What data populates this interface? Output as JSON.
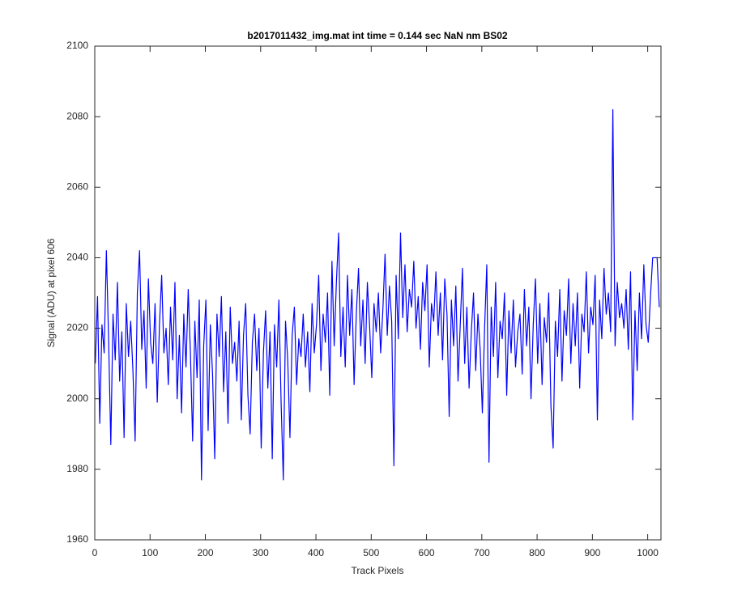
{
  "chart_data": {
    "type": "line",
    "title": "b2017011432_img.mat int time = 0.144 sec  NaN nm BS02",
    "xlabel": "Track Pixels",
    "ylabel": "Signal (ADU) at pixel 606",
    "xlim": [
      0,
      1024
    ],
    "ylim": [
      1960,
      2100
    ],
    "xticks": [
      0,
      100,
      200,
      300,
      400,
      500,
      600,
      700,
      800,
      900,
      1000
    ],
    "yticks": [
      1960,
      1980,
      2000,
      2020,
      2040,
      2060,
      2080,
      2100
    ],
    "x": [
      1,
      5,
      9,
      13,
      17,
      21,
      25,
      29,
      33,
      37,
      41,
      45,
      49,
      53,
      57,
      61,
      65,
      69,
      73,
      77,
      81,
      85,
      89,
      93,
      97,
      101,
      105,
      109,
      113,
      117,
      121,
      125,
      129,
      133,
      137,
      141,
      145,
      149,
      153,
      157,
      161,
      165,
      169,
      173,
      177,
      181,
      185,
      189,
      193,
      197,
      201,
      205,
      209,
      213,
      217,
      221,
      225,
      229,
      233,
      237,
      241,
      245,
      249,
      253,
      257,
      261,
      265,
      269,
      273,
      277,
      281,
      285,
      289,
      293,
      297,
      301,
      305,
      309,
      313,
      317,
      321,
      325,
      329,
      333,
      337,
      341,
      345,
      349,
      353,
      357,
      361,
      365,
      369,
      373,
      377,
      381,
      385,
      389,
      393,
      397,
      401,
      405,
      409,
      413,
      417,
      421,
      425,
      429,
      433,
      437,
      441,
      445,
      449,
      453,
      457,
      461,
      465,
      469,
      473,
      477,
      481,
      485,
      489,
      493,
      497,
      501,
      505,
      509,
      513,
      517,
      521,
      525,
      529,
      533,
      537,
      541,
      545,
      549,
      553,
      557,
      561,
      565,
      569,
      573,
      577,
      581,
      585,
      589,
      593,
      597,
      601,
      605,
      609,
      613,
      617,
      621,
      625,
      629,
      633,
      637,
      641,
      645,
      649,
      653,
      657,
      661,
      665,
      669,
      673,
      677,
      681,
      685,
      689,
      693,
      697,
      701,
      705,
      709,
      713,
      717,
      721,
      725,
      729,
      733,
      737,
      741,
      745,
      749,
      753,
      757,
      761,
      765,
      769,
      773,
      777,
      781,
      785,
      789,
      793,
      797,
      801,
      805,
      809,
      813,
      817,
      821,
      825,
      829,
      833,
      837,
      841,
      845,
      849,
      853,
      857,
      861,
      865,
      869,
      873,
      877,
      881,
      885,
      889,
      893,
      897,
      901,
      905,
      909,
      913,
      917,
      921,
      925,
      929,
      933,
      937,
      941,
      945,
      949,
      953,
      957,
      961,
      965,
      969,
      973,
      977,
      981,
      985,
      989,
      993,
      997,
      1001,
      1005,
      1009,
      1013,
      1017,
      1021
    ],
    "series": [
      {
        "color": "#0000ff",
        "values": [
          2010,
          2029,
          1993,
          2021,
          2013,
          2042,
          2017,
          1987,
          2024,
          2011,
          2033,
          2005,
          2019,
          1989,
          2027,
          2012,
          2022,
          2008,
          1988,
          2030,
          2042,
          2014,
          2025,
          2003,
          2034,
          2016,
          2010,
          2027,
          1999,
          2021,
          2035,
          2013,
          2020,
          2004,
          2026,
          2011,
          2033,
          2000,
          2018,
          1996,
          2024,
          2009,
          2031,
          2013,
          1988,
          2022,
          2006,
          2028,
          1977,
          2015,
          2028,
          1991,
          2021,
          2007,
          1983,
          2024,
          2012,
          2029,
          2002,
          2019,
          1993,
          2026,
          2010,
          2016,
          2005,
          2022,
          1994,
          2018,
          2027,
          2001,
          1990,
          2016,
          2024,
          2008,
          2020,
          1986,
          2013,
          2025,
          2003,
          2019,
          1983,
          2021,
          2009,
          2028,
          1999,
          1977,
          2022,
          2011,
          1989,
          2018,
          2026,
          2004,
          2017,
          2012,
          2024,
          2009,
          2019,
          2002,
          2027,
          2013,
          2021,
          2035,
          2008,
          2024,
          2016,
          2030,
          2001,
          2039,
          2015,
          2033,
          2047,
          2012,
          2026,
          2009,
          2035,
          2018,
          2031,
          2004,
          2024,
          2037,
          2015,
          2028,
          2010,
          2033,
          2021,
          2006,
          2027,
          2019,
          2030,
          2013,
          2025,
          2041,
          2018,
          2032,
          2022,
          1981,
          2035,
          2017,
          2047,
          2023,
          2038,
          2019,
          2031,
          2026,
          2039,
          2020,
          2029,
          2014,
          2033,
          2025,
          2038,
          2009,
          2027,
          2022,
          2036,
          2018,
          2030,
          2011,
          2034,
          2024,
          1995,
          2028,
          2015,
          2032,
          2005,
          2021,
          2037,
          2010,
          2026,
          2003,
          2019,
          2030,
          2008,
          2024,
          2014,
          1996,
          2020,
          2038,
          1982,
          2026,
          2012,
          2033,
          2006,
          2022,
          2017,
          2030,
          2001,
          2025,
          2013,
          2028,
          2009,
          2019,
          2024,
          2007,
          2031,
          2015,
          2026,
          2000,
          2021,
          2034,
          2010,
          2027,
          2004,
          2023,
          2016,
          2030,
          1998,
          1986,
          2022,
          2012,
          2031,
          2005,
          2025,
          2018,
          2034,
          2010,
          2027,
          2015,
          2030,
          2003,
          2024,
          2019,
          2036,
          2013,
          2026,
          2021,
          2035,
          1994,
          2028,
          2017,
          2037,
          2024,
          2030,
          2019,
          2082,
          2015,
          2033,
          2023,
          2027,
          2020,
          2031,
          2014,
          2036,
          1994,
          2025,
          2008,
          2030,
          2017,
          2038,
          2021,
          2016,
          2029,
          2040,
          2040,
          2040,
          2026
        ]
      }
    ]
  }
}
